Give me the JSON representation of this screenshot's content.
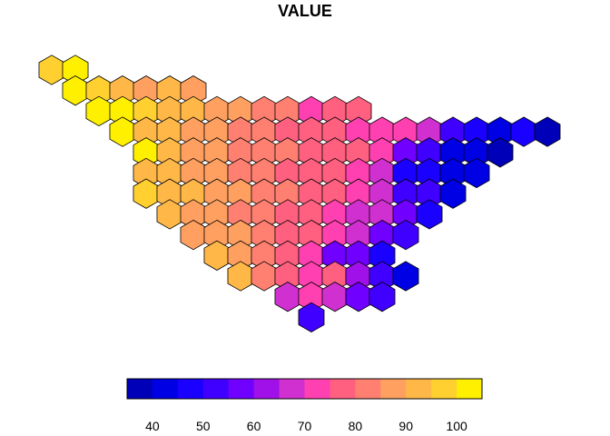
{
  "title": "VALUE",
  "chart_data": {
    "type": "heatmap",
    "title": "VALUE",
    "value_range": [
      35,
      105
    ],
    "legend": {
      "placement": "bottom",
      "breaks": [
        35,
        40,
        45,
        50,
        55,
        60,
        65,
        70,
        75,
        80,
        85,
        90,
        95,
        100,
        105
      ],
      "colors": [
        "#0000B8",
        "#0000E5",
        "#1A00FF",
        "#4000FF",
        "#7000FF",
        "#A010E8",
        "#D030D0",
        "#FF40B0",
        "#FF6080",
        "#FF8070",
        "#FFA060",
        "#FFB848",
        "#FFD030",
        "#FFF000"
      ],
      "tick_labels": [
        "40",
        "50",
        "60",
        "70",
        "80",
        "90",
        "100"
      ],
      "tick_values": [
        40,
        50,
        60,
        70,
        80,
        90,
        100
      ]
    },
    "grid": {
      "shape": "hexagon",
      "rows": [
        {
          "row": 0,
          "start": 0,
          "values": [
            97,
            101
          ]
        },
        {
          "row": 1,
          "start": 1,
          "values": [
            103,
            99,
            93,
            88,
            92,
            90
          ]
        },
        {
          "row": 2,
          "start": 2,
          "values": [
            104,
            101,
            96,
            94,
            91,
            88,
            86,
            83,
            82,
            73,
            76,
            77
          ]
        },
        {
          "row": 3,
          "start": 3,
          "values": [
            103,
            95,
            93,
            89,
            87,
            85,
            81,
            79,
            80,
            77,
            75,
            74,
            71,
            66,
            52,
            48,
            45,
            48,
            38
          ]
        },
        {
          "row": 4,
          "start": 4,
          "values": [
            101,
            93,
            88,
            86,
            84,
            83,
            81,
            79,
            77,
            76,
            71,
            58,
            55,
            45,
            44,
            36
          ]
        },
        {
          "row": 5,
          "start": 4,
          "values": [
            95,
            92,
            89,
            88,
            84,
            81,
            80,
            78,
            76,
            73,
            70,
            50,
            47,
            45,
            43
          ]
        },
        {
          "row": 6,
          "start": 4,
          "values": [
            98,
            94,
            92,
            88,
            86,
            83,
            81,
            78,
            76,
            72,
            67,
            54,
            51,
            44
          ]
        },
        {
          "row": 7,
          "start": 5,
          "values": [
            93,
            90,
            88,
            85,
            82,
            80,
            78,
            74,
            70,
            66,
            56,
            46
          ]
        },
        {
          "row": 8,
          "start": 6,
          "values": [
            90,
            89,
            86,
            83,
            80,
            77,
            74,
            66,
            58,
            53
          ]
        },
        {
          "row": 9,
          "start": 7,
          "values": [
            91,
            87,
            82,
            78,
            75,
            60,
            57,
            50
          ]
        },
        {
          "row": 10,
          "start": 8,
          "values": [
            92,
            85,
            78,
            74,
            79,
            62,
            55,
            45
          ]
        },
        {
          "row": 11,
          "start": 10,
          "values": [
            69,
            72,
            66,
            58,
            54
          ]
        },
        {
          "row": 12,
          "start": 11,
          "values": [
            52
          ]
        }
      ]
    }
  }
}
